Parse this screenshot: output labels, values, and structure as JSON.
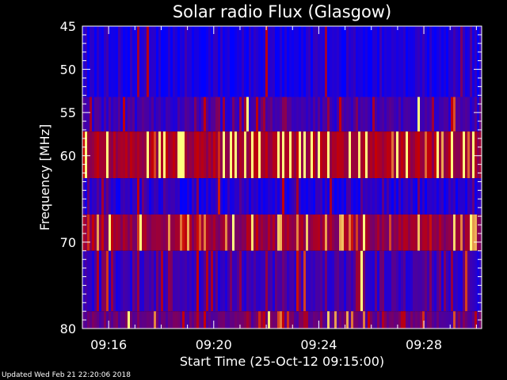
{
  "chart_data": {
    "type": "heatmap",
    "title": "Solar radio Flux (Glasgow)",
    "xlabel": "Start Time (25-Oct-12 09:15:00)",
    "ylabel": "Frequency [MHz]",
    "xlim_minutes": [
      15.0,
      30.2
    ],
    "ylim": [
      45,
      80
    ],
    "y_ticks": [
      "45",
      "50",
      "55",
      "60",
      "70",
      "80"
    ],
    "y_tick_values": [
      45,
      50,
      55,
      60,
      70,
      80
    ],
    "x_ticks": [
      "09:16",
      "09:20",
      "09:24",
      "09:28"
    ],
    "x_tick_values": [
      16,
      20,
      24,
      28
    ],
    "bands": [
      {
        "from": 45.0,
        "to": 53.2,
        "base": 0.08,
        "spike": 0.1
      },
      {
        "from": 53.2,
        "to": 57.2,
        "base": 0.22,
        "spike": 0.25
      },
      {
        "from": 57.2,
        "to": 62.6,
        "base": 0.62,
        "spike": 0.45
      },
      {
        "from": 62.6,
        "to": 66.8,
        "base": 0.12,
        "spike": 0.18
      },
      {
        "from": 66.8,
        "to": 71.0,
        "base": 0.55,
        "spike": 0.25
      },
      {
        "from": 71.0,
        "to": 78.0,
        "base": 0.2,
        "spike": 0.22
      },
      {
        "from": 78.0,
        "to": 80.0,
        "base": 0.38,
        "spike": 0.3
      }
    ],
    "colors": {
      "low": "#0000ff",
      "mid": "#c80000",
      "high": "#ffff80"
    }
  },
  "footer": "Updated Wed Feb 21 22:20:06 2018"
}
